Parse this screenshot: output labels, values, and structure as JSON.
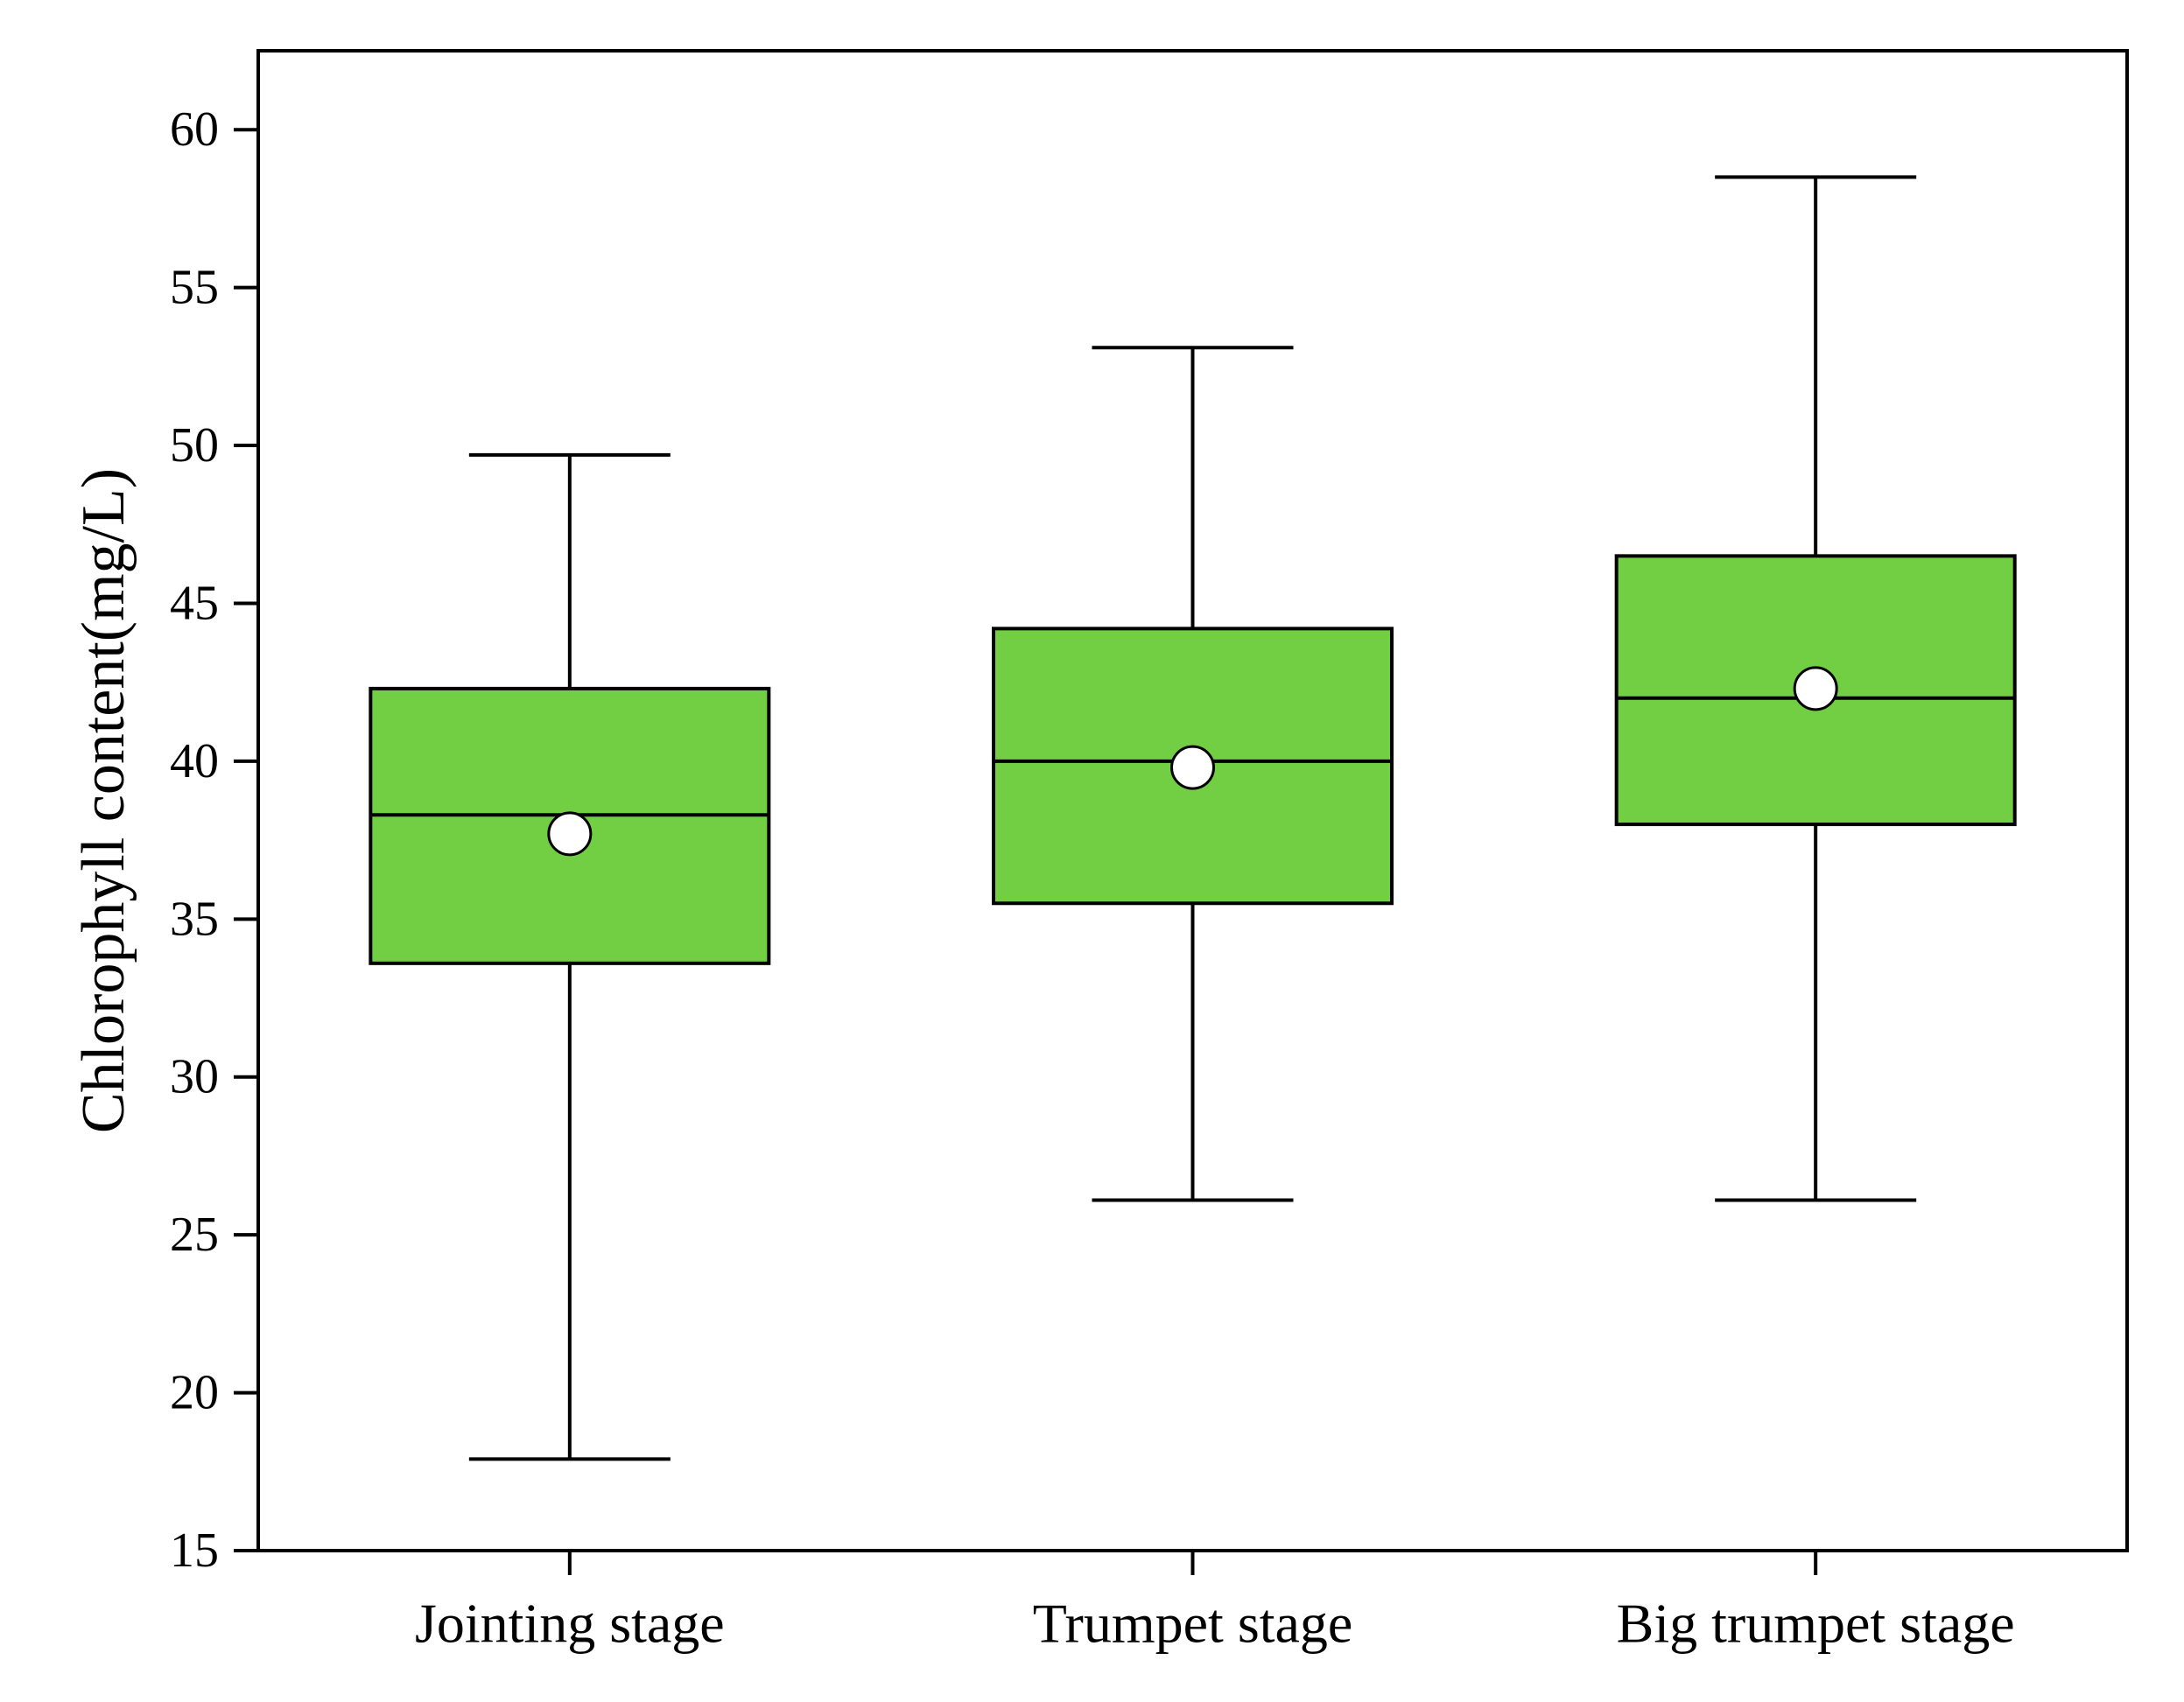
{
  "chart_data": {
    "type": "box",
    "title": "",
    "xlabel": "",
    "ylabel": "Chlorophyll content(mg/L)",
    "ylim": [
      15,
      62.5
    ],
    "yticks": [
      15,
      20,
      25,
      30,
      35,
      40,
      45,
      50,
      55,
      60
    ],
    "grid": false,
    "colors": {
      "box_fill": "#72cf44",
      "stroke": "#000000",
      "mean_marker": "#ffffff"
    },
    "categories": [
      "Jointing stage",
      "Trumpet stage",
      "Big trumpet stage"
    ],
    "boxes": [
      {
        "category": "Jointing stage",
        "whisker_low": 17.9,
        "q1": 33.6,
        "median": 38.3,
        "q3": 42.3,
        "whisker_high": 49.7,
        "mean": 37.7
      },
      {
        "category": "Trumpet stage",
        "whisker_low": 26.1,
        "q1": 35.5,
        "median": 40.0,
        "q3": 44.2,
        "whisker_high": 53.1,
        "mean": 39.8
      },
      {
        "category": "Big trumpet stage",
        "whisker_low": 26.1,
        "q1": 38.0,
        "median": 42.0,
        "q3": 46.5,
        "whisker_high": 58.5,
        "mean": 42.3
      }
    ]
  }
}
